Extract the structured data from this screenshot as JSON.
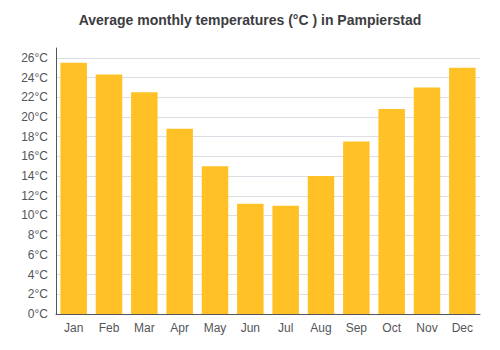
{
  "chart_data": {
    "type": "bar",
    "title": "Average monthly temperatures (°C ) in Pampierstad",
    "categories": [
      "Jan",
      "Feb",
      "Mar",
      "Apr",
      "May",
      "Jun",
      "Jul",
      "Aug",
      "Sep",
      "Oct",
      "Nov",
      "Dec"
    ],
    "values": [
      25.5,
      24.3,
      22.5,
      18.8,
      15.0,
      11.2,
      11.0,
      14.0,
      17.5,
      20.8,
      23.0,
      25.0
    ],
    "color": "#FFC125",
    "ylim": [
      0,
      27
    ],
    "yticks": [
      {
        "value": 0,
        "label": "0°C"
      },
      {
        "value": 2,
        "label": "2°C"
      },
      {
        "value": 4,
        "label": "4°C"
      },
      {
        "value": 6,
        "label": "6°C"
      },
      {
        "value": 8,
        "label": "8°C"
      },
      {
        "value": 10,
        "label": "10°C"
      },
      {
        "value": 12,
        "label": "12°C"
      },
      {
        "value": 14,
        "label": "14°C"
      },
      {
        "value": 16,
        "label": "16°C"
      },
      {
        "value": 18,
        "label": "18°C"
      },
      {
        "value": 20,
        "label": "20°C"
      },
      {
        "value": 22,
        "label": "22°C"
      },
      {
        "value": 24,
        "label": "24°C"
      },
      {
        "value": 26,
        "label": "26°C"
      }
    ],
    "grid": true
  }
}
